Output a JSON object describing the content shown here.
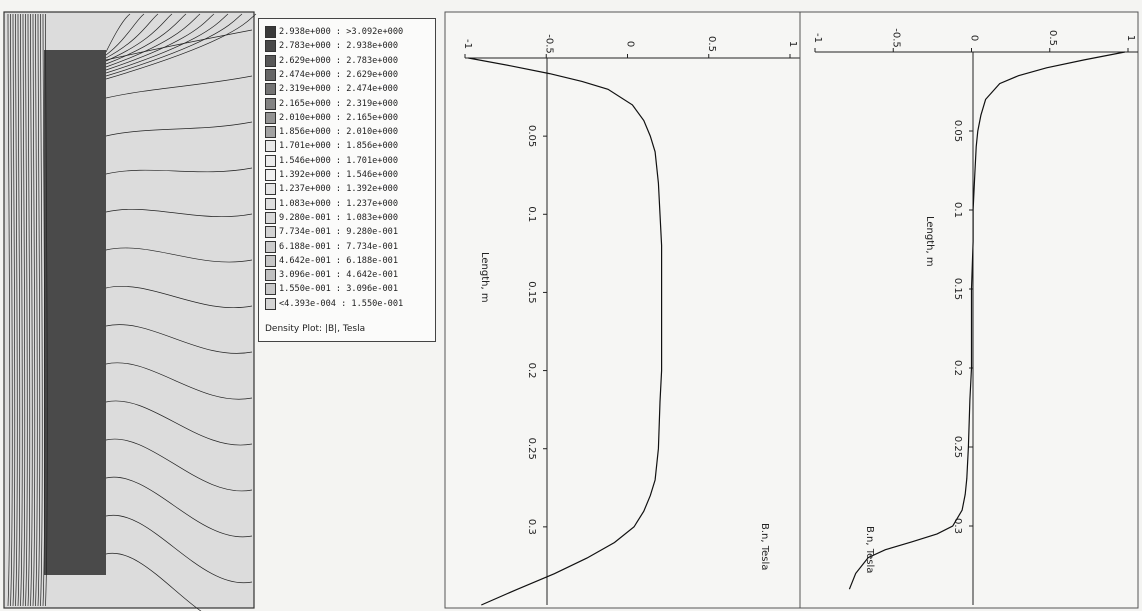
{
  "legend": {
    "rows": [
      {
        "label": "2.938e+000 : >3.092e+000",
        "color": "#3a3a3a"
      },
      {
        "label": "2.783e+000 : 2.938e+000",
        "color": "#484848"
      },
      {
        "label": "2.629e+000 : 2.783e+000",
        "color": "#575757"
      },
      {
        "label": "2.474e+000 : 2.629e+000",
        "color": "#666666"
      },
      {
        "label": "2.319e+000 : 2.474e+000",
        "color": "#747474"
      },
      {
        "label": "2.165e+000 : 2.319e+000",
        "color": "#838383"
      },
      {
        "label": "2.010e+000 : 2.165e+000",
        "color": "#929292"
      },
      {
        "label": "1.856e+000 : 2.010e+000",
        "color": "#a2a2a2"
      },
      {
        "label": "1.701e+000 : 1.856e+000",
        "color": "#e8e8e8"
      },
      {
        "label": "1.546e+000 : 1.701e+000",
        "color": "#ececec"
      },
      {
        "label": "1.392e+000 : 1.546e+000",
        "color": "#f0f0f0"
      },
      {
        "label": "1.237e+000 : 1.392e+000",
        "color": "#e4e4e4"
      },
      {
        "label": "1.083e+000 : 1.237e+000",
        "color": "#dedede"
      },
      {
        "label": "9.280e-001 : 1.083e+000",
        "color": "#d8d8d8"
      },
      {
        "label": "7.734e-001 : 9.280e-001",
        "color": "#d2d2d2"
      },
      {
        "label": "6.188e-001 : 7.734e-001",
        "color": "#cccccc"
      },
      {
        "label": "4.642e-001 : 6.188e-001",
        "color": "#c6c6c6"
      },
      {
        "label": "3.096e-001 : 4.642e-001",
        "color": "#c0c0c0"
      },
      {
        "label": "1.550e-001 : 3.096e-001",
        "color": "#c8c8c8"
      },
      {
        "label": "<4.393e-004 : 1.550e-001",
        "color": "#d4d4d4"
      }
    ],
    "caption": "Density Plot: |B|, Tesla"
  },
  "chart_data": [
    {
      "type": "line",
      "orientation": "rotated-90",
      "xlabel": "Length, m",
      "ylabel": "B.n, Tesla",
      "xlim": [
        0,
        0.35
      ],
      "ylim": [
        -1,
        1
      ],
      "x_ticks": [
        "0.05",
        "0.1",
        "0.15",
        "0.2",
        "0.25",
        "0.3"
      ],
      "y_ticks": [
        "-1",
        "-0.5",
        "0",
        "0.5",
        "1"
      ],
      "x": [
        0,
        0.005,
        0.01,
        0.015,
        0.02,
        0.03,
        0.04,
        0.05,
        0.06,
        0.08,
        0.1,
        0.12,
        0.15,
        0.18,
        0.2,
        0.22,
        0.25,
        0.27,
        0.28,
        0.29,
        0.3,
        0.31,
        0.32,
        0.33,
        0.34,
        0.35
      ],
      "y": [
        -0.98,
        -0.72,
        -0.48,
        -0.28,
        -0.12,
        0.03,
        0.1,
        0.14,
        0.17,
        0.19,
        0.2,
        0.21,
        0.21,
        0.21,
        0.21,
        0.2,
        0.19,
        0.17,
        0.14,
        0.1,
        0.04,
        -0.08,
        -0.25,
        -0.45,
        -0.68,
        -0.9
      ]
    },
    {
      "type": "line",
      "orientation": "rotated-90",
      "xlabel": "Length, m",
      "ylabel": "B.n, Tesla",
      "xlim": [
        0,
        0.35
      ],
      "ylim": [
        -1,
        1
      ],
      "x_ticks": [
        "0.05",
        "0.1",
        "0.15",
        "0.2",
        "0.25",
        "0.3"
      ],
      "y_ticks": [
        "-1",
        "-0.5",
        "0",
        "0.5",
        "1"
      ],
      "x": [
        0,
        0.005,
        0.01,
        0.015,
        0.02,
        0.03,
        0.04,
        0.05,
        0.06,
        0.08,
        0.1,
        0.12,
        0.15,
        0.18,
        0.2,
        0.22,
        0.25,
        0.27,
        0.28,
        0.29,
        0.3,
        0.305,
        0.31,
        0.315,
        0.32,
        0.33,
        0.34
      ],
      "y": [
        0.98,
        0.72,
        0.48,
        0.3,
        0.18,
        0.09,
        0.06,
        0.04,
        0.03,
        0.02,
        0.01,
        0.01,
        0.0,
        0.0,
        0.0,
        -0.01,
        -0.02,
        -0.03,
        -0.04,
        -0.06,
        -0.12,
        -0.22,
        -0.38,
        -0.55,
        -0.66,
        -0.74,
        -0.78
      ]
    }
  ]
}
